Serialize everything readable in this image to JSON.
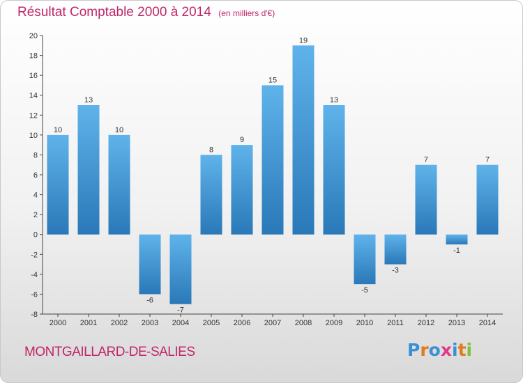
{
  "header": {
    "title": "Résultat Comptable 2000 à 2014",
    "unit": "(en milliers d'€)"
  },
  "footer": {
    "place": "MONTGAILLARD-DE-SALIES",
    "logo_text": "Proxiti"
  },
  "colors": {
    "title": "#c0266a",
    "bar_top": "#5fb3ea",
    "bar_bottom": "#2a78b8",
    "logo_letters": [
      "#3a8fd6",
      "#e07a1f",
      "#3a8fd6",
      "#e03a8a",
      "#3a8fd6",
      "#e07a1f",
      "#7cc23a"
    ]
  },
  "chart_data": {
    "type": "bar",
    "categories": [
      "2000",
      "2001",
      "2002",
      "2003",
      "2004",
      "2005",
      "2006",
      "2007",
      "2008",
      "2009",
      "2010",
      "2011",
      "2012",
      "2013",
      "2014"
    ],
    "values": [
      10,
      13,
      10,
      -6,
      -7,
      8,
      9,
      15,
      19,
      13,
      -5,
      -3,
      7,
      -1,
      7
    ],
    "title": "Résultat Comptable 2000 à 2014",
    "ylim": [
      -8,
      20
    ],
    "yticks": [
      -8,
      -6,
      -4,
      -2,
      0,
      2,
      4,
      6,
      8,
      10,
      12,
      14,
      16,
      18,
      20
    ],
    "grid": false
  }
}
